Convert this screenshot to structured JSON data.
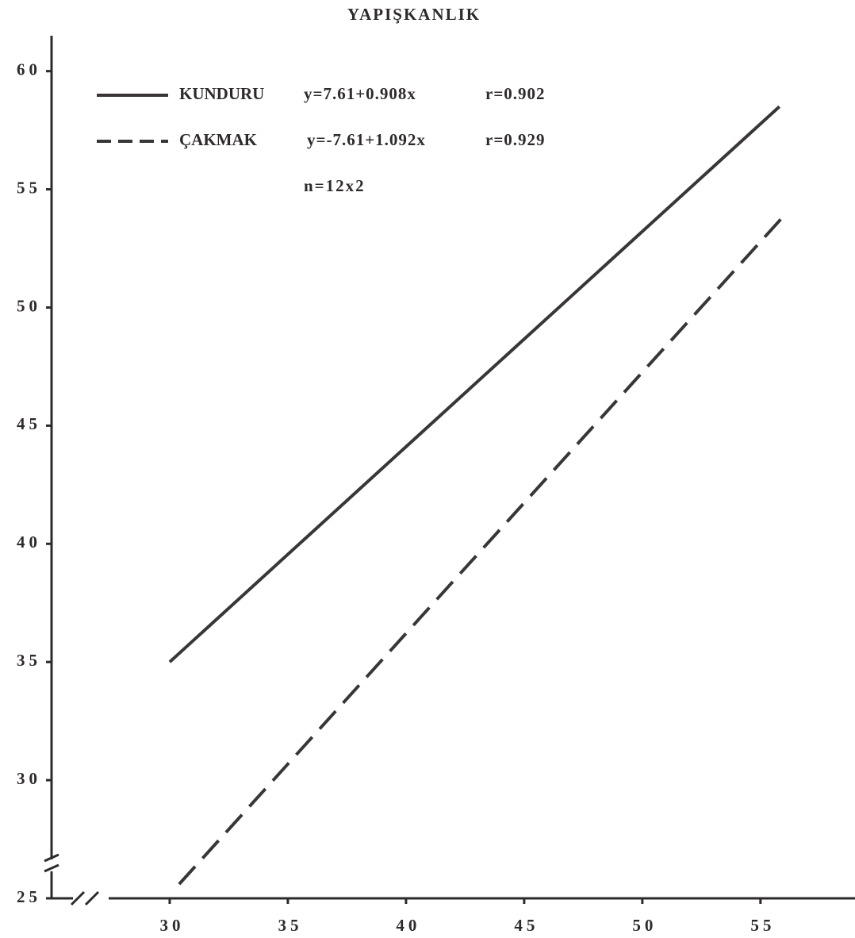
{
  "chart_data": {
    "type": "line",
    "title": "YAPIŞKANLIK",
    "series": [
      {
        "name": "KUNDURU",
        "equation": "y=7.61+0.908x",
        "r_label": "r=0.902",
        "color": "#3a3538",
        "dash": "solid",
        "x": [
          30,
          55.8
        ],
        "values": [
          35,
          58.5
        ]
      },
      {
        "name": "ÇAKMAK",
        "equation": "y=-7.61+1.092x",
        "r_label": "r=0.929",
        "color": "#3a3538",
        "dash": "dashed",
        "x": [
          30.4,
          56.1
        ],
        "values": [
          25.6,
          54
        ]
      }
    ],
    "n_label": "n=12x2",
    "xlim": [
      25,
      59
    ],
    "xticks": [
      30,
      35,
      40,
      45,
      50,
      55
    ],
    "ylim": [
      25,
      61.5
    ],
    "yticks": [
      25,
      30,
      35,
      40,
      45,
      50,
      55,
      60
    ],
    "grid": false
  }
}
